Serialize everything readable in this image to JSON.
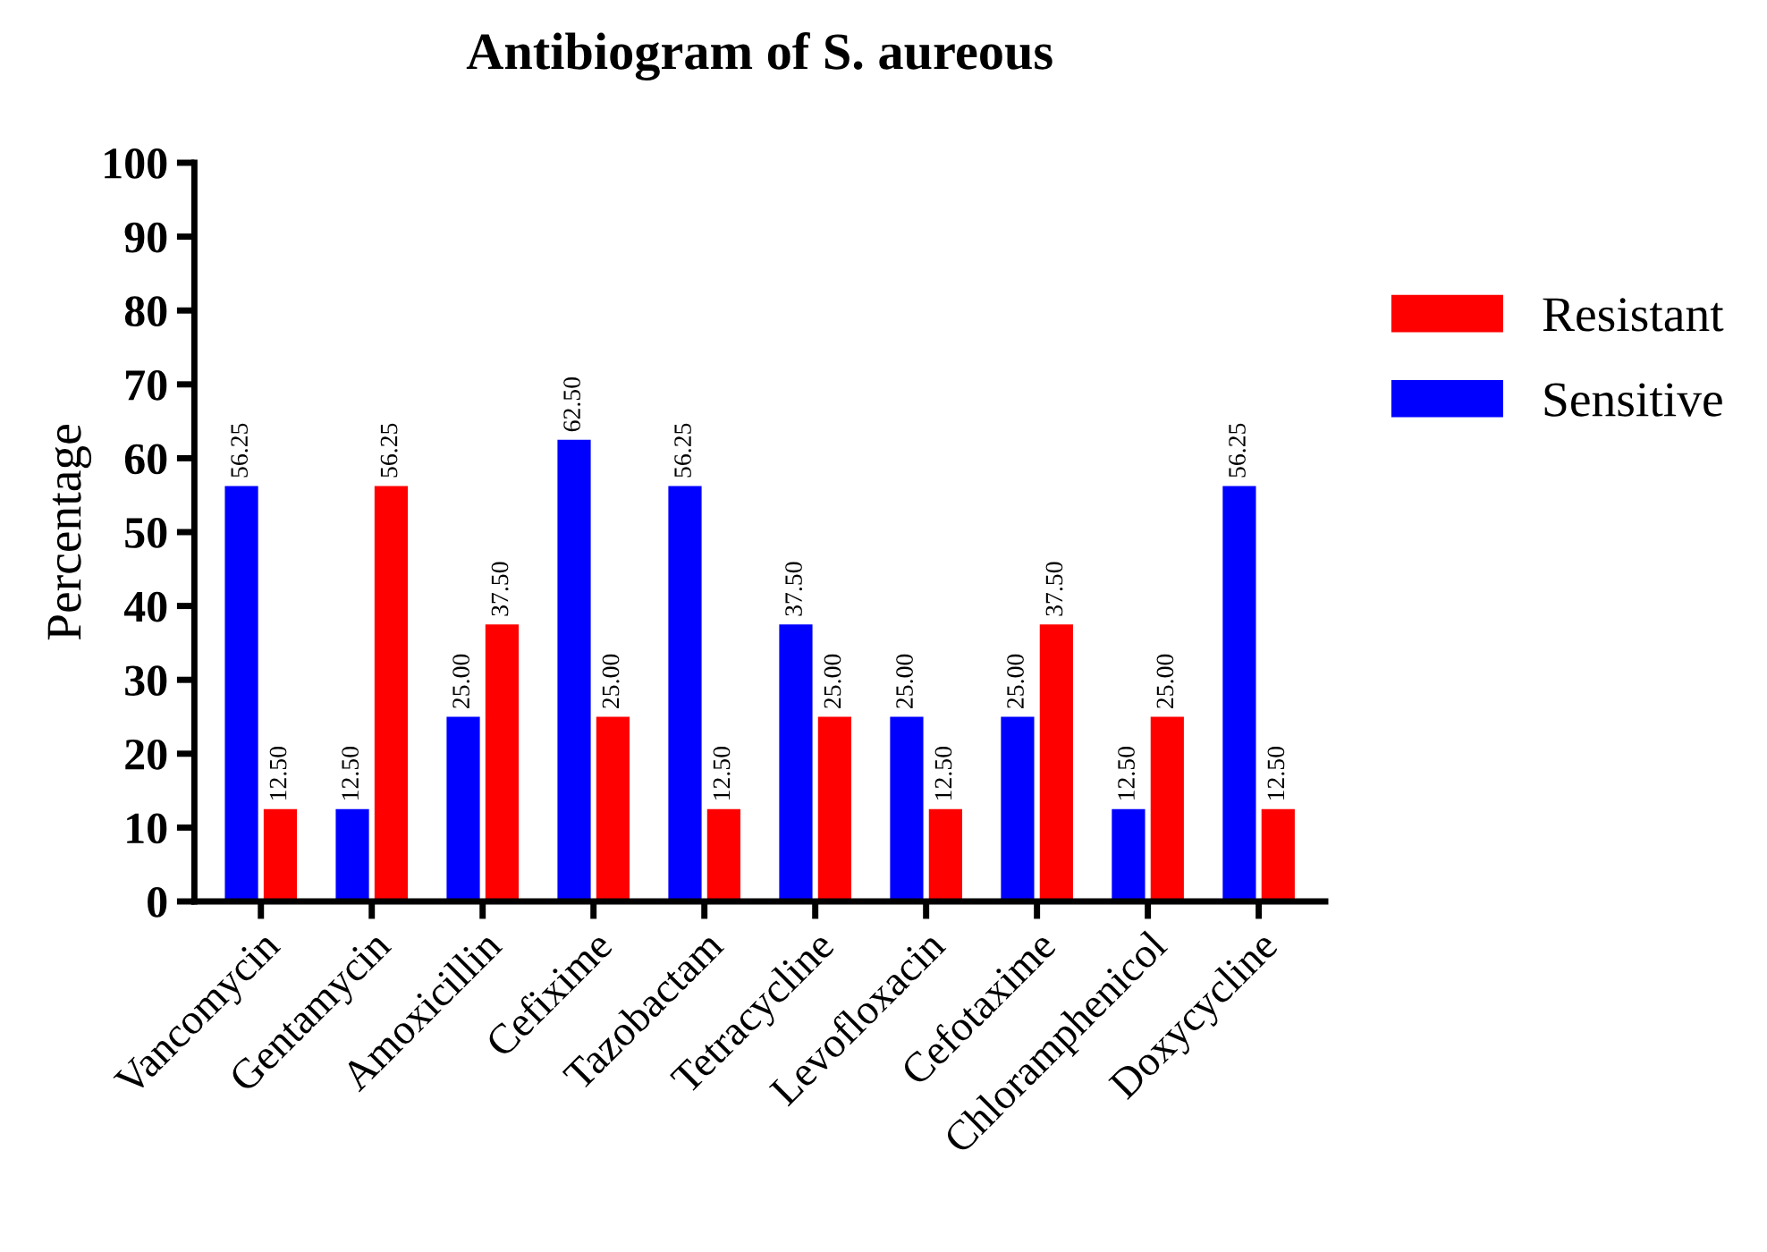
{
  "chart_data": {
    "type": "bar",
    "title": "Antibiogram of S. aureous",
    "ylabel": "Percentage",
    "categories": [
      "Vancomycin",
      "Gentamycin",
      "Amoxicillin",
      "Cefixime",
      "Tazobactam",
      "Tetracycline",
      "Levofloxacin",
      "Cefotaxime",
      "Chloramphenicol",
      "Doxycycline"
    ],
    "series": [
      {
        "name": "Sensitive",
        "color": "#0000ff",
        "values": [
          56.25,
          12.5,
          25,
          62.5,
          56.25,
          37.5,
          25,
          25,
          12.5,
          56.25
        ],
        "value_labels": [
          "56.25",
          "12.50",
          "25.00",
          "62.50",
          "56.25",
          "37.50",
          "25.00",
          "25.00",
          "12.50",
          "56.25"
        ]
      },
      {
        "name": "Resistant",
        "color": "#ff0000",
        "values": [
          12.5,
          56.25,
          37.5,
          25,
          12.5,
          25,
          12.5,
          37.5,
          25,
          12.5
        ],
        "value_labels": [
          "12.50",
          "56.25",
          "37.50",
          "25.00",
          "12.50",
          "25.00",
          "12.50",
          "37.50",
          "25.00",
          "12.50"
        ]
      }
    ],
    "ylim": [
      0,
      100
    ],
    "yticks": [
      0,
      10,
      20,
      30,
      40,
      50,
      60,
      70,
      80,
      90,
      100
    ],
    "grid": false,
    "legend": "right"
  }
}
